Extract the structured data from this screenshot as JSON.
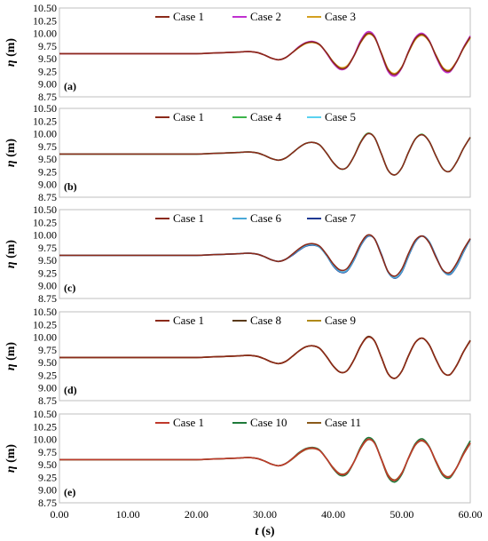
{
  "chart_data": [
    {
      "type": "line",
      "panel_label": "(a)",
      "ylabel_symbol": "η",
      "ylabel_unit": "(m)",
      "ylim": [
        8.75,
        10.5
      ],
      "yticks": [
        "8.75",
        "9.00",
        "9.25",
        "9.50",
        "9.75",
        "10.00",
        "10.25",
        "10.50"
      ],
      "xlim": [
        0,
        60
      ],
      "grid": false,
      "legend_position": "top-center",
      "x": [
        0,
        5,
        10,
        15,
        20,
        22,
        24,
        26,
        27,
        28,
        29,
        30,
        31,
        32,
        33,
        34,
        35,
        36,
        37,
        38,
        39,
        40,
        41,
        42,
        43,
        44,
        45,
        46,
        47,
        48,
        49,
        50,
        51,
        52,
        53,
        54,
        55,
        56,
        57,
        58,
        59,
        60
      ],
      "series": [
        {
          "name": "Case 1",
          "color": "#8b2a1a",
          "values": [
            9.6,
            9.6,
            9.6,
            9.6,
            9.6,
            9.61,
            9.62,
            9.63,
            9.64,
            9.64,
            9.62,
            9.57,
            9.51,
            9.48,
            9.52,
            9.62,
            9.73,
            9.81,
            9.83,
            9.78,
            9.62,
            9.43,
            9.31,
            9.34,
            9.55,
            9.83,
            10.0,
            9.93,
            9.61,
            9.28,
            9.19,
            9.33,
            9.64,
            9.9,
            9.98,
            9.85,
            9.56,
            9.31,
            9.26,
            9.44,
            9.71,
            9.93
          ]
        },
        {
          "name": "Case 2",
          "color": "#c030d0",
          "values": [
            9.6,
            9.6,
            9.6,
            9.6,
            9.6,
            9.61,
            9.62,
            9.63,
            9.64,
            9.64,
            9.62,
            9.57,
            9.51,
            9.48,
            9.52,
            9.62,
            9.74,
            9.82,
            9.84,
            9.78,
            9.61,
            9.41,
            9.29,
            9.33,
            9.56,
            9.86,
            10.03,
            9.95,
            9.6,
            9.25,
            9.16,
            9.32,
            9.65,
            9.92,
            10.0,
            9.86,
            9.54,
            9.28,
            9.24,
            9.44,
            9.72,
            9.95
          ]
        },
        {
          "name": "Case 3",
          "color": "#d4a020",
          "values": [
            9.6,
            9.6,
            9.6,
            9.6,
            9.6,
            9.61,
            9.62,
            9.63,
            9.64,
            9.64,
            9.62,
            9.57,
            9.51,
            9.48,
            9.52,
            9.62,
            9.72,
            9.8,
            9.82,
            9.77,
            9.62,
            9.44,
            9.33,
            9.36,
            9.56,
            9.82,
            9.98,
            9.92,
            9.62,
            9.3,
            9.21,
            9.34,
            9.63,
            9.88,
            9.96,
            9.84,
            9.57,
            9.33,
            9.28,
            9.45,
            9.7,
            9.91
          ]
        }
      ]
    },
    {
      "type": "line",
      "panel_label": "(b)",
      "ylabel_symbol": "η",
      "ylabel_unit": "(m)",
      "ylim": [
        8.75,
        10.5
      ],
      "yticks": [
        "8.75",
        "9.00",
        "9.25",
        "9.50",
        "9.75",
        "10.00",
        "10.25",
        "10.50"
      ],
      "xlim": [
        0,
        60
      ],
      "grid": false,
      "legend_position": "top-center",
      "x": [
        0,
        5,
        10,
        15,
        20,
        22,
        24,
        26,
        27,
        28,
        29,
        30,
        31,
        32,
        33,
        34,
        35,
        36,
        37,
        38,
        39,
        40,
        41,
        42,
        43,
        44,
        45,
        46,
        47,
        48,
        49,
        50,
        51,
        52,
        53,
        54,
        55,
        56,
        57,
        58,
        59,
        60
      ],
      "series": [
        {
          "name": "Case 1",
          "color": "#8b2a1a",
          "values": [
            9.6,
            9.6,
            9.6,
            9.6,
            9.6,
            9.61,
            9.62,
            9.63,
            9.64,
            9.64,
            9.62,
            9.57,
            9.51,
            9.48,
            9.52,
            9.62,
            9.73,
            9.81,
            9.83,
            9.78,
            9.62,
            9.43,
            9.31,
            9.34,
            9.55,
            9.83,
            10.0,
            9.93,
            9.61,
            9.28,
            9.19,
            9.33,
            9.64,
            9.9,
            9.98,
            9.85,
            9.56,
            9.31,
            9.26,
            9.44,
            9.71,
            9.93
          ]
        },
        {
          "name": "Case 4",
          "color": "#3cb44b",
          "values": [
            9.6,
            9.6,
            9.6,
            9.6,
            9.6,
            9.61,
            9.62,
            9.63,
            9.64,
            9.64,
            9.62,
            9.57,
            9.51,
            9.48,
            9.52,
            9.62,
            9.73,
            9.81,
            9.83,
            9.78,
            9.62,
            9.43,
            9.31,
            9.34,
            9.55,
            9.84,
            10.01,
            9.93,
            9.61,
            9.28,
            9.19,
            9.33,
            9.64,
            9.9,
            9.99,
            9.85,
            9.56,
            9.31,
            9.26,
            9.44,
            9.71,
            9.93
          ]
        },
        {
          "name": "Case 5",
          "color": "#5ad2f0",
          "values": [
            9.6,
            9.6,
            9.6,
            9.6,
            9.6,
            9.61,
            9.62,
            9.63,
            9.64,
            9.64,
            9.62,
            9.57,
            9.51,
            9.48,
            9.52,
            9.62,
            9.73,
            9.81,
            9.83,
            9.78,
            9.62,
            9.43,
            9.31,
            9.34,
            9.55,
            9.83,
            10.0,
            9.93,
            9.61,
            9.28,
            9.19,
            9.33,
            9.64,
            9.9,
            9.98,
            9.85,
            9.56,
            9.31,
            9.26,
            9.44,
            9.71,
            9.93
          ]
        }
      ]
    },
    {
      "type": "line",
      "panel_label": "(c)",
      "ylabel_symbol": "η",
      "ylabel_unit": "(m)",
      "ylim": [
        8.75,
        10.5
      ],
      "yticks": [
        "8.75",
        "9.00",
        "9.25",
        "9.50",
        "9.75",
        "10.00",
        "10.25",
        "10.50"
      ],
      "xlim": [
        0,
        60
      ],
      "grid": false,
      "legend_position": "top-center",
      "x": [
        0,
        5,
        10,
        15,
        20,
        22,
        24,
        26,
        27,
        28,
        29,
        30,
        31,
        32,
        33,
        34,
        35,
        36,
        37,
        38,
        39,
        40,
        41,
        42,
        43,
        44,
        45,
        46,
        47,
        48,
        49,
        50,
        51,
        52,
        53,
        54,
        55,
        56,
        57,
        58,
        59,
        60
      ],
      "series": [
        {
          "name": "Case 1",
          "color": "#8b2a1a",
          "values": [
            9.6,
            9.6,
            9.6,
            9.6,
            9.6,
            9.61,
            9.62,
            9.63,
            9.64,
            9.64,
            9.62,
            9.57,
            9.51,
            9.48,
            9.52,
            9.62,
            9.73,
            9.81,
            9.83,
            9.78,
            9.62,
            9.43,
            9.31,
            9.34,
            9.55,
            9.83,
            10.0,
            9.93,
            9.61,
            9.28,
            9.19,
            9.33,
            9.64,
            9.9,
            9.98,
            9.85,
            9.56,
            9.31,
            9.26,
            9.44,
            9.71,
            9.93
          ]
        },
        {
          "name": "Case 6",
          "color": "#4aa8d8",
          "values": [
            9.6,
            9.6,
            9.6,
            9.6,
            9.6,
            9.61,
            9.62,
            9.63,
            9.64,
            9.64,
            9.62,
            9.57,
            9.51,
            9.48,
            9.52,
            9.61,
            9.71,
            9.79,
            9.81,
            9.76,
            9.6,
            9.4,
            9.28,
            9.3,
            9.51,
            9.8,
            9.98,
            9.93,
            9.62,
            9.27,
            9.16,
            9.28,
            9.6,
            9.88,
            9.98,
            9.87,
            9.57,
            9.3,
            9.23,
            9.39,
            9.67,
            9.92
          ]
        },
        {
          "name": "Case 7",
          "color": "#1f3a93",
          "values": [
            9.6,
            9.6,
            9.6,
            9.6,
            9.6,
            9.61,
            9.62,
            9.63,
            9.64,
            9.64,
            9.62,
            9.57,
            9.51,
            9.48,
            9.52,
            9.6,
            9.7,
            9.78,
            9.8,
            9.76,
            9.6,
            9.39,
            9.27,
            9.29,
            9.5,
            9.79,
            9.97,
            9.93,
            9.63,
            9.27,
            9.15,
            9.27,
            9.59,
            9.87,
            9.98,
            9.87,
            9.58,
            9.3,
            9.22,
            9.38,
            9.66,
            9.92
          ]
        }
      ]
    },
    {
      "type": "line",
      "panel_label": "(d)",
      "ylabel_symbol": "η",
      "ylabel_unit": "(m)",
      "ylim": [
        8.75,
        10.5
      ],
      "yticks": [
        "8.75",
        "9.00",
        "9.25",
        "9.50",
        "9.75",
        "10.00",
        "10.25",
        "10.50"
      ],
      "xlim": [
        0,
        60
      ],
      "grid": false,
      "legend_position": "top-center",
      "x": [
        0,
        5,
        10,
        15,
        20,
        22,
        24,
        26,
        27,
        28,
        29,
        30,
        31,
        32,
        33,
        34,
        35,
        36,
        37,
        38,
        39,
        40,
        41,
        42,
        43,
        44,
        45,
        46,
        47,
        48,
        49,
        50,
        51,
        52,
        53,
        54,
        55,
        56,
        57,
        58,
        59,
        60
      ],
      "series": [
        {
          "name": "Case 1",
          "color": "#8b2a1a",
          "values": [
            9.6,
            9.6,
            9.6,
            9.6,
            9.6,
            9.61,
            9.62,
            9.63,
            9.64,
            9.64,
            9.62,
            9.57,
            9.51,
            9.48,
            9.52,
            9.62,
            9.73,
            9.81,
            9.83,
            9.78,
            9.62,
            9.43,
            9.31,
            9.34,
            9.55,
            9.83,
            10.0,
            9.93,
            9.61,
            9.28,
            9.19,
            9.33,
            9.64,
            9.9,
            9.98,
            9.85,
            9.56,
            9.31,
            9.26,
            9.44,
            9.71,
            9.93
          ]
        },
        {
          "name": "Case 8",
          "color": "#5a3a1a",
          "values": [
            9.6,
            9.6,
            9.6,
            9.6,
            9.6,
            9.61,
            9.62,
            9.63,
            9.64,
            9.64,
            9.62,
            9.57,
            9.51,
            9.48,
            9.52,
            9.62,
            9.73,
            9.81,
            9.83,
            9.78,
            9.62,
            9.43,
            9.31,
            9.34,
            9.55,
            9.83,
            10.01,
            9.93,
            9.61,
            9.28,
            9.19,
            9.33,
            9.64,
            9.9,
            9.98,
            9.85,
            9.56,
            9.31,
            9.26,
            9.44,
            9.71,
            9.94
          ]
        },
        {
          "name": "Case 9",
          "color": "#b08a1a",
          "values": [
            9.6,
            9.6,
            9.6,
            9.6,
            9.6,
            9.61,
            9.62,
            9.63,
            9.64,
            9.64,
            9.62,
            9.57,
            9.51,
            9.48,
            9.52,
            9.62,
            9.73,
            9.81,
            9.83,
            9.78,
            9.62,
            9.43,
            9.31,
            9.34,
            9.55,
            9.83,
            10.0,
            9.93,
            9.61,
            9.28,
            9.19,
            9.33,
            9.64,
            9.9,
            9.98,
            9.85,
            9.56,
            9.31,
            9.26,
            9.44,
            9.71,
            9.93
          ]
        }
      ]
    },
    {
      "type": "line",
      "panel_label": "(e)",
      "ylabel_symbol": "η",
      "ylabel_unit": "(m)",
      "ylim": [
        8.75,
        10.5
      ],
      "yticks": [
        "8.75",
        "9.00",
        "9.25",
        "9.50",
        "9.75",
        "10.00",
        "10.25",
        "10.50"
      ],
      "xlim": [
        0,
        60
      ],
      "xticks": [
        "0.00",
        "10.00",
        "20.00",
        "30.00",
        "40.00",
        "50.00",
        "60.00"
      ],
      "xlabel_symbol": "t",
      "xlabel_unit": "(s)",
      "grid": false,
      "legend_position": "top-center",
      "x": [
        0,
        5,
        10,
        15,
        20,
        22,
        24,
        26,
        27,
        28,
        29,
        30,
        31,
        32,
        33,
        34,
        35,
        36,
        37,
        38,
        39,
        40,
        41,
        42,
        43,
        44,
        45,
        46,
        47,
        48,
        49,
        50,
        51,
        52,
        53,
        54,
        55,
        56,
        57,
        58,
        59,
        60
      ],
      "series": [
        {
          "name": "Case 1",
          "color": "#c0392b",
          "values": [
            9.6,
            9.6,
            9.6,
            9.6,
            9.6,
            9.61,
            9.62,
            9.63,
            9.64,
            9.64,
            9.62,
            9.57,
            9.51,
            9.48,
            9.52,
            9.62,
            9.73,
            9.81,
            9.83,
            9.78,
            9.62,
            9.43,
            9.31,
            9.34,
            9.55,
            9.83,
            10.0,
            9.93,
            9.61,
            9.28,
            9.19,
            9.33,
            9.64,
            9.9,
            9.98,
            9.85,
            9.56,
            9.31,
            9.26,
            9.44,
            9.71,
            9.93
          ]
        },
        {
          "name": "Case 10",
          "color": "#1e7a3a",
          "values": [
            9.6,
            9.6,
            9.6,
            9.6,
            9.6,
            9.61,
            9.62,
            9.63,
            9.64,
            9.64,
            9.62,
            9.57,
            9.51,
            9.48,
            9.52,
            9.62,
            9.74,
            9.82,
            9.84,
            9.79,
            9.62,
            9.42,
            9.29,
            9.32,
            9.55,
            9.85,
            10.03,
            9.95,
            9.61,
            9.26,
            9.16,
            9.31,
            9.64,
            9.92,
            10.01,
            9.86,
            9.55,
            9.29,
            9.24,
            9.44,
            9.73,
            9.97
          ]
        },
        {
          "name": "Case 11",
          "color": "#8a5a1a",
          "values": [
            9.6,
            9.6,
            9.6,
            9.6,
            9.6,
            9.61,
            9.62,
            9.63,
            9.64,
            9.64,
            9.62,
            9.57,
            9.51,
            9.48,
            9.52,
            9.61,
            9.72,
            9.8,
            9.82,
            9.78,
            9.62,
            9.44,
            9.32,
            9.35,
            9.55,
            9.82,
            9.99,
            9.93,
            9.62,
            9.3,
            9.2,
            9.34,
            9.63,
            9.89,
            9.97,
            9.85,
            9.57,
            9.32,
            9.27,
            9.44,
            9.7,
            9.92
          ]
        }
      ]
    }
  ]
}
